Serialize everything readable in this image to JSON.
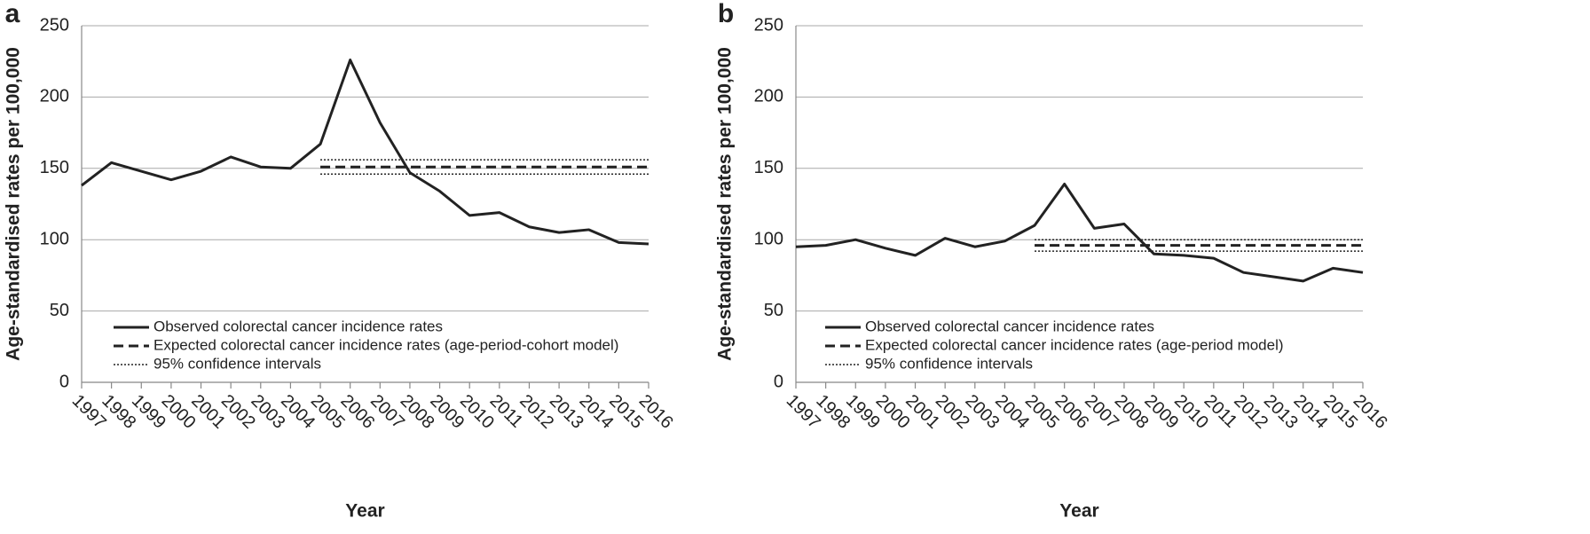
{
  "chart_data": [
    {
      "type": "line",
      "panel_label": "a",
      "x_label": "Year",
      "y_label": "Age-standardised rates per 100,000",
      "categories": [
        "1997",
        "1998",
        "1999",
        "2000",
        "2001",
        "2002",
        "2003",
        "2004",
        "2005",
        "2006",
        "2007",
        "2008",
        "2009",
        "2010",
        "2011",
        "2012",
        "2013",
        "2014",
        "2015",
        "2016"
      ],
      "ylim": [
        0,
        250
      ],
      "yticks": [
        0,
        50,
        100,
        150,
        200,
        250
      ],
      "grid": true,
      "series": [
        {
          "name": "Observed colorectal cancer incidence rates",
          "color": "#222222",
          "style": "solid",
          "values": [
            138,
            154,
            148,
            142,
            148,
            158,
            151,
            150,
            167,
            226,
            182,
            147,
            134,
            117,
            119,
            109,
            105,
            107,
            98,
            97
          ]
        },
        {
          "name": "Expected colorectal cancer incidence rates (age-period-cohort model)",
          "color": "#222222",
          "style": "dashed",
          "values": [
            null,
            null,
            null,
            null,
            null,
            null,
            null,
            null,
            151,
            151,
            151,
            151,
            151,
            151,
            151,
            151,
            151,
            151,
            151,
            151
          ]
        },
        {
          "name": "95% confidence intervals",
          "color": "#222222",
          "style": "dotted",
          "lower": [
            null,
            null,
            null,
            null,
            null,
            null,
            null,
            null,
            146,
            146,
            146,
            146,
            146,
            146,
            146,
            146,
            146,
            146,
            146,
            146
          ],
          "upper": [
            null,
            null,
            null,
            null,
            null,
            null,
            null,
            null,
            156,
            156,
            156,
            156,
            156,
            156,
            156,
            156,
            156,
            156,
            156,
            156
          ]
        }
      ]
    },
    {
      "type": "line",
      "panel_label": "b",
      "x_label": "Year",
      "y_label": "Age-standardised rates per 100,000",
      "categories": [
        "1997",
        "1998",
        "1999",
        "2000",
        "2001",
        "2002",
        "2003",
        "2004",
        "2005",
        "2006",
        "2007",
        "2008",
        "2009",
        "2010",
        "2011",
        "2012",
        "2013",
        "2014",
        "2015",
        "2016"
      ],
      "ylim": [
        0,
        250
      ],
      "yticks": [
        0,
        50,
        100,
        150,
        200,
        250
      ],
      "grid": true,
      "series": [
        {
          "name": "Observed colorectal cancer incidence rates",
          "color": "#222222",
          "style": "solid",
          "values": [
            95,
            96,
            100,
            94,
            89,
            101,
            95,
            99,
            110,
            139,
            108,
            111,
            90,
            89,
            87,
            77,
            74,
            71,
            80,
            77
          ]
        },
        {
          "name": "Expected colorectal cancer incidence rates (age-period model)",
          "color": "#222222",
          "style": "dashed",
          "values": [
            null,
            null,
            null,
            null,
            null,
            null,
            null,
            null,
            96,
            96,
            96,
            96,
            96,
            96,
            96,
            96,
            96,
            96,
            96,
            96
          ]
        },
        {
          "name": "95% confidence intervals",
          "color": "#222222",
          "style": "dotted",
          "lower": [
            null,
            null,
            null,
            null,
            null,
            null,
            null,
            null,
            92,
            92,
            92,
            92,
            92,
            92,
            92,
            92,
            92,
            92,
            92,
            92
          ],
          "upper": [
            null,
            null,
            null,
            null,
            null,
            null,
            null,
            null,
            100,
            100,
            100,
            100,
            100,
            100,
            100,
            100,
            100,
            100,
            100,
            100
          ]
        }
      ]
    }
  ]
}
